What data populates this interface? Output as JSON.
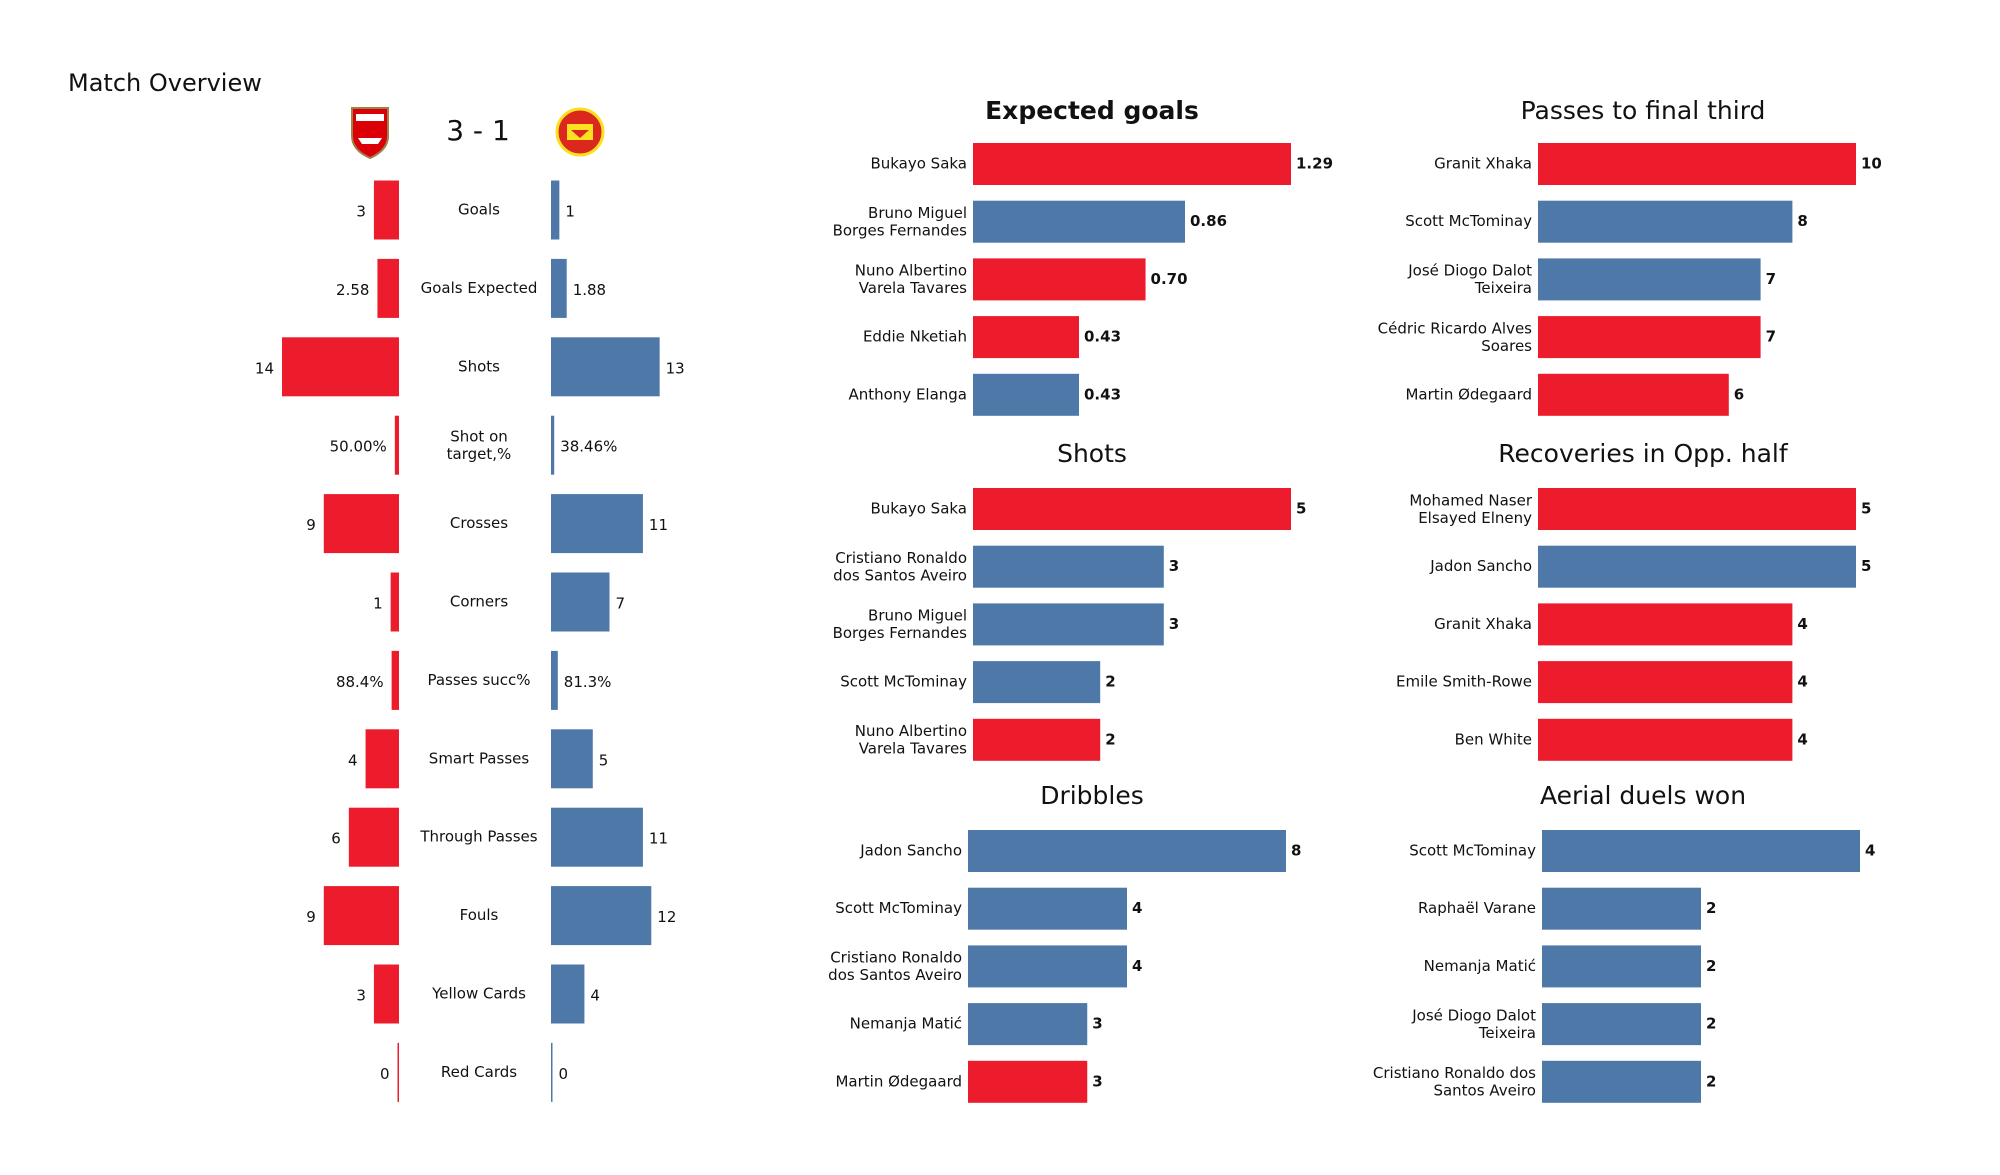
{
  "chart_data": [
    {
      "type": "comparison",
      "title": "Match Overview",
      "score": "3 - 1",
      "categories": [
        "Goals",
        "Goals Expected",
        "Shots",
        "Shot on\ntarget,%",
        "Crosses",
        "Corners",
        "Passes succ%",
        "Smart Passes",
        "Through Passes",
        "Fouls",
        "Yellow Cards",
        "Red Cards"
      ],
      "series": [
        {
          "color": "#ec1c2c",
          "values": [
            3,
            2.58,
            14,
            0.5,
            9,
            1,
            0.884,
            4,
            6,
            9,
            3,
            0
          ],
          "value_labels": [
            "3",
            "2.58",
            "14",
            "50.00%",
            "9",
            "1",
            "88.4%",
            "4",
            "6",
            "9",
            "3",
            "0"
          ]
        },
        {
          "color": "#4e78a8",
          "values": [
            1,
            1.88,
            13,
            0.3846,
            11,
            7,
            0.813,
            5,
            11,
            12,
            4,
            0
          ],
          "value_labels": [
            "1",
            "1.88",
            "13",
            "38.46%",
            "11",
            "7",
            "81.3%",
            "5",
            "11",
            "12",
            "4",
            "0"
          ]
        }
      ]
    },
    {
      "type": "hbar",
      "title": "Expected goals",
      "categories": [
        "Bukayo Saka",
        "Bruno Miguel\nBorges Fernandes",
        "Nuno Albertino\nVarela Tavares",
        "Eddie Nketiah",
        "Anthony Elanga"
      ],
      "values": [
        1.29,
        0.86,
        0.7,
        0.43,
        0.43
      ],
      "value_labels": [
        "1.29",
        "0.86",
        "0.70",
        "0.43",
        "0.43"
      ],
      "colors": [
        "#ec1c2c",
        "#4e78a8",
        "#ec1c2c",
        "#ec1c2c",
        "#4e78a8"
      ]
    },
    {
      "type": "hbar",
      "title": "Passes to final third",
      "categories": [
        "Granit Xhaka",
        "Scott McTominay",
        "José Diogo Dalot\nTeixeira",
        "Cédric Ricardo Alves\nSoares",
        "Martin Ødegaard"
      ],
      "values": [
        10,
        8,
        7,
        7,
        6
      ],
      "colors": [
        "#ec1c2c",
        "#4e78a8",
        "#4e78a8",
        "#ec1c2c",
        "#ec1c2c"
      ]
    },
    {
      "type": "hbar",
      "title": "Shots",
      "categories": [
        "Bukayo Saka",
        "Cristiano Ronaldo\ndos Santos Aveiro",
        "Bruno Miguel\nBorges Fernandes",
        "Scott McTominay",
        "Nuno Albertino\nVarela Tavares"
      ],
      "values": [
        5,
        3,
        3,
        2,
        2
      ],
      "colors": [
        "#ec1c2c",
        "#4e78a8",
        "#4e78a8",
        "#4e78a8",
        "#ec1c2c"
      ]
    },
    {
      "type": "hbar",
      "title": "Recoveries in Opp. half",
      "categories": [
        "Mohamed Naser\nElsayed Elneny",
        "Jadon Sancho",
        "Granit Xhaka",
        "Emile Smith-Rowe",
        "Ben White"
      ],
      "values": [
        5,
        5,
        4,
        4,
        4
      ],
      "colors": [
        "#ec1c2c",
        "#4e78a8",
        "#ec1c2c",
        "#ec1c2c",
        "#ec1c2c"
      ]
    },
    {
      "type": "hbar",
      "title": "Dribbles",
      "categories": [
        "Jadon Sancho",
        "Scott McTominay",
        "Cristiano Ronaldo\ndos Santos Aveiro",
        "Nemanja Matić",
        "Martin Ødegaard"
      ],
      "values": [
        8,
        4,
        4,
        3,
        3
      ],
      "colors": [
        "#4e78a8",
        "#4e78a8",
        "#4e78a8",
        "#4e78a8",
        "#ec1c2c"
      ]
    },
    {
      "type": "hbar",
      "title": "Aerial duels won",
      "categories": [
        "Scott McTominay",
        "Raphaël Varane",
        "Nemanja Matić",
        "José Diogo Dalot\nTeixeira",
        "Cristiano Ronaldo dos\nSantos Aveiro"
      ],
      "values": [
        4,
        2,
        2,
        2,
        2
      ],
      "colors": [
        "#4e78a8",
        "#4e78a8",
        "#4e78a8",
        "#4e78a8",
        "#4e78a8"
      ]
    }
  ]
}
